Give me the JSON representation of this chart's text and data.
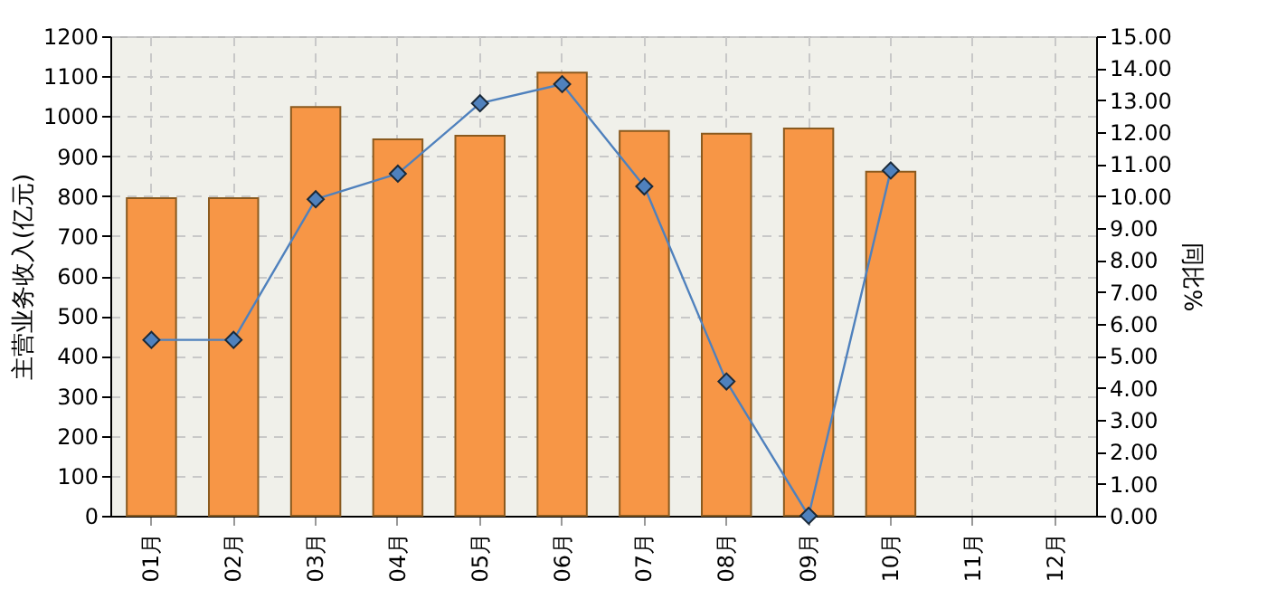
{
  "chart_data": {
    "type": "bar",
    "ylabel": "主营业务收入(亿元)",
    "y2label": "同比%",
    "categories": [
      "01月",
      "02月",
      "03月",
      "04月",
      "05月",
      "06月",
      "07月",
      "08月",
      "09月",
      "10月",
      "11月",
      "12月"
    ],
    "series": [
      {
        "color": "#f79646",
        "values": [
          795,
          795,
          1023,
          942,
          951,
          1109,
          963,
          956,
          969,
          861,
          null,
          null
        ]
      },
      {
        "type": "line",
        "axis": "y2",
        "color": "#4f81bd",
        "values": [
          5.5,
          5.5,
          9.9,
          10.7,
          12.9,
          13.5,
          10.3,
          4.2,
          0.0,
          10.8,
          null,
          null
        ]
      }
    ],
    "ylim": [
      0,
      1200
    ],
    "yticks": [
      0,
      100,
      200,
      300,
      400,
      500,
      600,
      700,
      800,
      900,
      1000,
      1100,
      1200
    ],
    "y2lim": [
      0,
      15
    ],
    "y2ticks": [
      {
        "value": 0,
        "label": "0.00"
      },
      {
        "value": 1,
        "label": "1.00"
      },
      {
        "value": 2,
        "label": "2.00"
      },
      {
        "value": 3,
        "label": "3.00"
      },
      {
        "value": 4,
        "label": "4.00"
      },
      {
        "value": 5,
        "label": "5.00"
      },
      {
        "value": 6,
        "label": "6.00"
      },
      {
        "value": 7,
        "label": "7.00"
      },
      {
        "value": 8,
        "label": "8.00"
      },
      {
        "value": 9,
        "label": "9.00"
      },
      {
        "value": 10,
        "label": "10.00"
      },
      {
        "value": 11,
        "label": "11.00"
      },
      {
        "value": 12,
        "label": "12.00"
      },
      {
        "value": 13,
        "label": "13.00"
      },
      {
        "value": 14,
        "label": "14.00"
      },
      {
        "value": 15,
        "label": "15.00"
      }
    ],
    "grid": true,
    "marker": "diamond",
    "line_style": "solid"
  }
}
